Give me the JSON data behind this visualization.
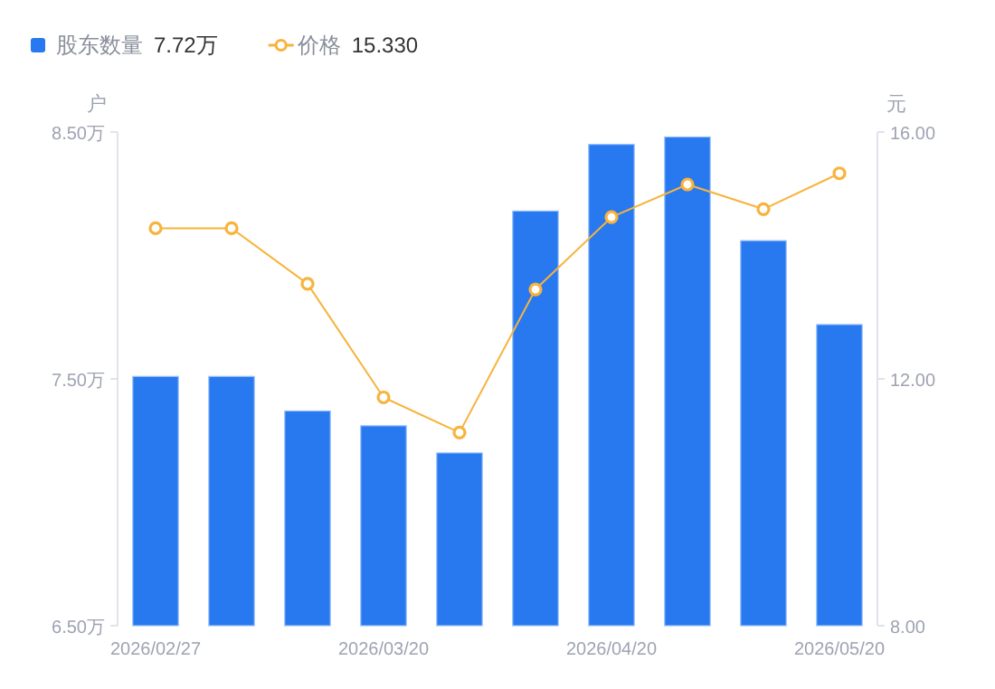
{
  "chart_data": {
    "type": "bar",
    "categories": [
      "2026/02/27",
      null,
      null,
      "2026/03/20",
      null,
      null,
      "2026/04/20",
      null,
      null,
      "2026/05/20"
    ],
    "series": [
      {
        "name": "股东数量",
        "color": "#2878f0",
        "values": [
          7.51,
          7.51,
          7.37,
          7.31,
          7.2,
          8.18,
          8.45,
          8.48,
          8.06,
          7.72
        ]
      },
      {
        "name": "价格",
        "type": "line",
        "axis": "y2",
        "color": "#f8b33c",
        "marker": "circle",
        "values": [
          14.44,
          14.44,
          13.54,
          11.7,
          11.13,
          13.45,
          14.62,
          15.15,
          14.75,
          15.33
        ]
      }
    ],
    "ylabel": "户",
    "y2label": "元",
    "ylim": [
      6.5,
      8.5
    ],
    "yticks": [
      {
        "value": 6.5,
        "label": "6.50万"
      },
      {
        "value": 7.5,
        "label": "7.50万"
      },
      {
        "value": 8.5,
        "label": "8.50万"
      }
    ],
    "y2lim": [
      8,
      16
    ],
    "y2ticks": [
      {
        "value": 8,
        "label": "8.00"
      },
      {
        "value": 12,
        "label": "12.00"
      },
      {
        "value": 16,
        "label": "16.00"
      }
    ],
    "annotations": [
      "7.72万",
      "15.330"
    ],
    "legend": "top left",
    "grid": false
  }
}
